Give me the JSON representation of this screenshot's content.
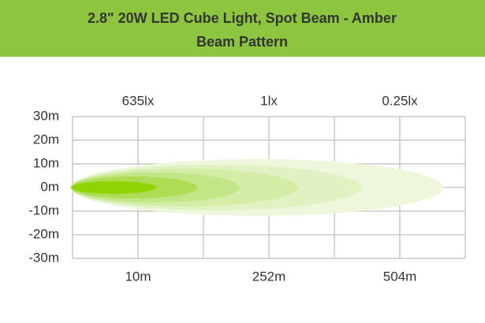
{
  "chart_data": {
    "type": "beam",
    "title": "2.8\" 20W LED Cube Light, Spot Beam - Amber",
    "subtitle": "Beam Pattern",
    "ylim": [
      -30,
      30
    ],
    "yticks": [
      {
        "value": 30,
        "label": "30m"
      },
      {
        "value": 20,
        "label": "20m"
      },
      {
        "value": 10,
        "label": "10m"
      },
      {
        "value": 0,
        "label": "0m"
      },
      {
        "value": -10,
        "label": "-10m"
      },
      {
        "value": -20,
        "label": "-20m"
      },
      {
        "value": -30,
        "label": "-30m"
      }
    ],
    "x_labels": [
      "10m",
      "252m",
      "504m"
    ],
    "lux_labels": [
      "635lx",
      "1lx",
      "0.25lx"
    ],
    "grid": true,
    "color": "#8cc63f"
  }
}
